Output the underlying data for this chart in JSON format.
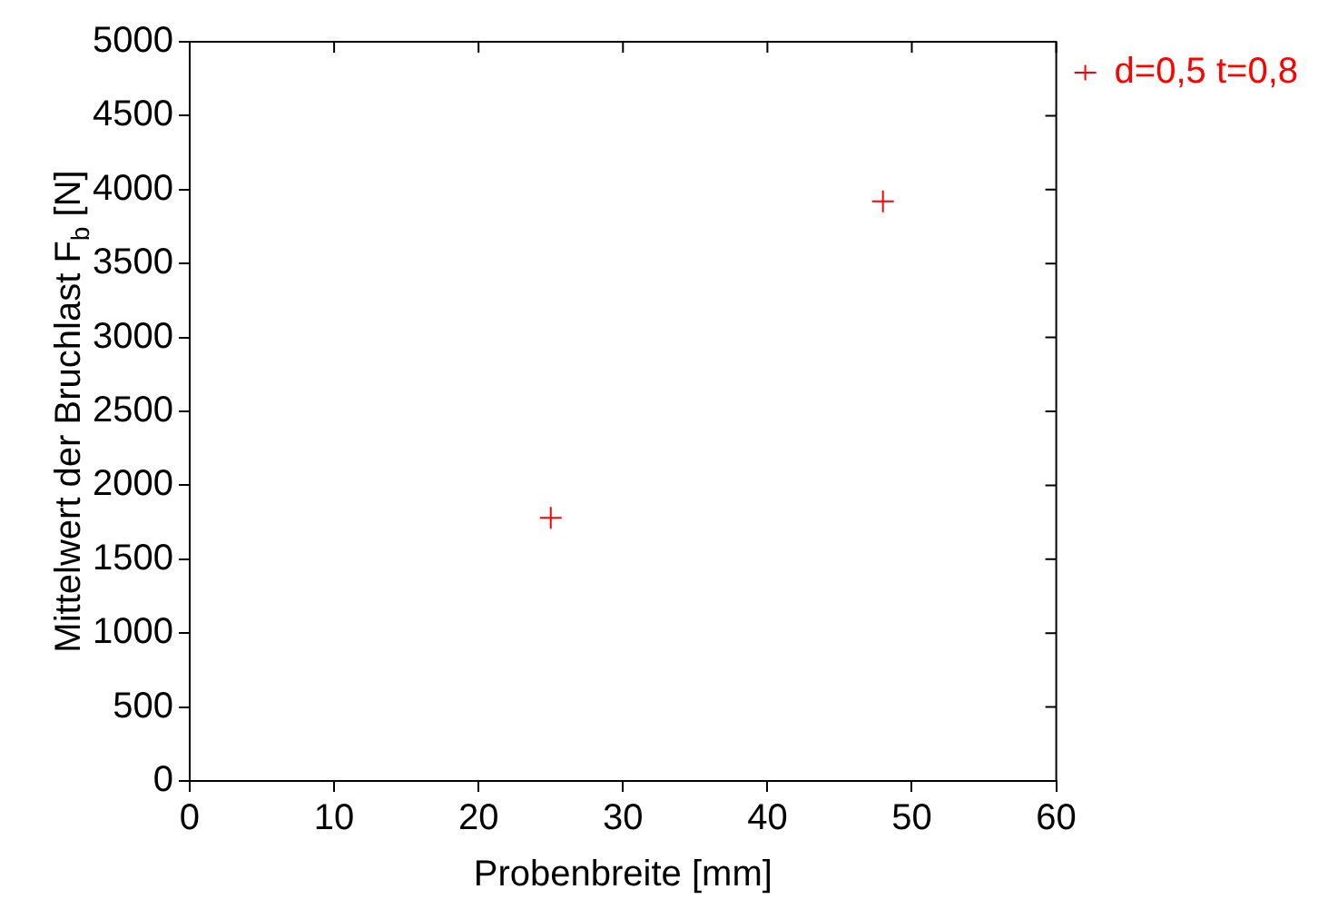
{
  "chart_data": {
    "type": "scatter",
    "xlabel": "Probenbreite [mm]",
    "ylabel": "Mittelwert der Bruchlast F$_{b}$ [N]",
    "xlim": [
      0,
      60
    ],
    "xticks": [
      0,
      10,
      20,
      30,
      40,
      50,
      60
    ],
    "ylim": [
      0,
      5000
    ],
    "yticks": [
      0,
      500,
      1000,
      1500,
      2000,
      2500,
      3000,
      3500,
      4000,
      4500,
      5000
    ],
    "series": [
      {
        "name": "d=0,5 t=0,8",
        "color": "#ff0000",
        "x": [
          25,
          48
        ],
        "values": [
          1780,
          3920
        ]
      }
    ],
    "marker": "cross",
    "legend": "top right",
    "grid": false
  }
}
